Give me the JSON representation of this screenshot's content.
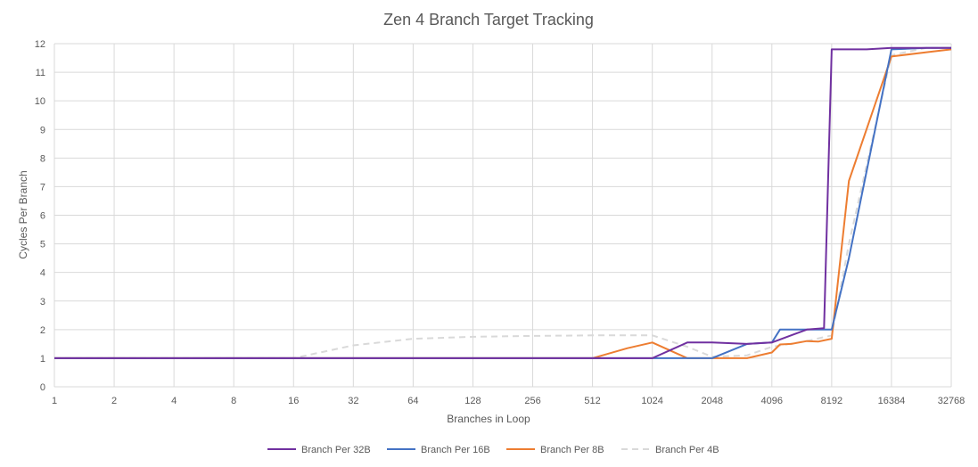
{
  "chart_data": {
    "type": "line",
    "title": "Zen 4 Branch Target Tracking",
    "xlabel": "Branches in Loop",
    "ylabel": "Cycles Per Branch",
    "x_scale": "log2",
    "xlim": [
      1,
      32768
    ],
    "ylim": [
      0,
      12
    ],
    "x_ticks": [
      1,
      2,
      4,
      8,
      16,
      32,
      64,
      128,
      256,
      512,
      1024,
      2048,
      4096,
      8192,
      16384,
      32768
    ],
    "x_tick_labels": [
      "1",
      "2",
      "4",
      "8",
      "16",
      "32",
      "64",
      "128",
      "256",
      "512",
      "1024",
      "2048",
      "4096",
      "8192",
      "16384",
      "32768"
    ],
    "y_ticks": [
      0,
      1,
      2,
      3,
      4,
      5,
      6,
      7,
      8,
      9,
      10,
      11,
      12
    ],
    "y_tick_labels": [
      "0",
      "1",
      "2",
      "3",
      "4",
      "5",
      "6",
      "7",
      "8",
      "9",
      "10",
      "11",
      "12"
    ],
    "grid": true,
    "legend_position": "bottom",
    "series": [
      {
        "name": "Branch Per 32B",
        "color": "#7030a0",
        "dash": "solid",
        "points": [
          [
            1,
            1
          ],
          [
            2,
            1
          ],
          [
            4,
            1
          ],
          [
            8,
            1
          ],
          [
            16,
            1
          ],
          [
            32,
            1
          ],
          [
            64,
            1
          ],
          [
            128,
            1
          ],
          [
            256,
            1
          ],
          [
            512,
            1
          ],
          [
            1024,
            1
          ],
          [
            1536,
            1.55
          ],
          [
            2048,
            1.55
          ],
          [
            3072,
            1.5
          ],
          [
            4096,
            1.55
          ],
          [
            6144,
            2.0
          ],
          [
            7500,
            2.05
          ],
          [
            8192,
            11.8
          ],
          [
            12288,
            11.8
          ],
          [
            16384,
            11.85
          ],
          [
            24576,
            11.85
          ],
          [
            32768,
            11.85
          ]
        ]
      },
      {
        "name": "Branch Per 16B",
        "color": "#4472c4",
        "dash": "solid",
        "points": [
          [
            1,
            1
          ],
          [
            2,
            1
          ],
          [
            4,
            1
          ],
          [
            8,
            1
          ],
          [
            16,
            1
          ],
          [
            32,
            1
          ],
          [
            64,
            1
          ],
          [
            128,
            1
          ],
          [
            256,
            1
          ],
          [
            512,
            1
          ],
          [
            1024,
            1
          ],
          [
            1536,
            1
          ],
          [
            2048,
            1
          ],
          [
            3072,
            1.5
          ],
          [
            4096,
            1.55
          ],
          [
            4500,
            2.0
          ],
          [
            6144,
            2.0
          ],
          [
            8192,
            2.0
          ],
          [
            10000,
            4.5
          ],
          [
            16384,
            11.8
          ],
          [
            24576,
            11.85
          ],
          [
            32768,
            11.85
          ]
        ]
      },
      {
        "name": "Branch Per 8B",
        "color": "#ed7d31",
        "dash": "solid",
        "points": [
          [
            1,
            1
          ],
          [
            2,
            1
          ],
          [
            4,
            1
          ],
          [
            8,
            1
          ],
          [
            16,
            1
          ],
          [
            32,
            1
          ],
          [
            64,
            1
          ],
          [
            128,
            1
          ],
          [
            256,
            1
          ],
          [
            512,
            1
          ],
          [
            768,
            1.35
          ],
          [
            1024,
            1.55
          ],
          [
            1536,
            1.0
          ],
          [
            2048,
            1.0
          ],
          [
            3072,
            1.0
          ],
          [
            4096,
            1.2
          ],
          [
            4500,
            1.48
          ],
          [
            5120,
            1.5
          ],
          [
            6144,
            1.6
          ],
          [
            7000,
            1.58
          ],
          [
            8192,
            1.68
          ],
          [
            10000,
            7.2
          ],
          [
            16384,
            11.55
          ],
          [
            24576,
            11.7
          ],
          [
            32768,
            11.8
          ]
        ]
      },
      {
        "name": "Branch Per 4B",
        "color": "#d9d9d9",
        "dash": "dashed",
        "points": [
          [
            1,
            1
          ],
          [
            2,
            1
          ],
          [
            4,
            1
          ],
          [
            8,
            1
          ],
          [
            16,
            1
          ],
          [
            32,
            1.45
          ],
          [
            64,
            1.68
          ],
          [
            128,
            1.75
          ],
          [
            256,
            1.78
          ],
          [
            512,
            1.8
          ],
          [
            1024,
            1.8
          ],
          [
            1536,
            1.4
          ],
          [
            2048,
            1.05
          ],
          [
            3072,
            1.1
          ],
          [
            4096,
            1.4
          ],
          [
            6144,
            1.6
          ],
          [
            8192,
            1.8
          ],
          [
            10000,
            5.0
          ],
          [
            16384,
            11.6
          ],
          [
            24576,
            11.85
          ],
          [
            32768,
            11.85
          ]
        ]
      }
    ]
  }
}
